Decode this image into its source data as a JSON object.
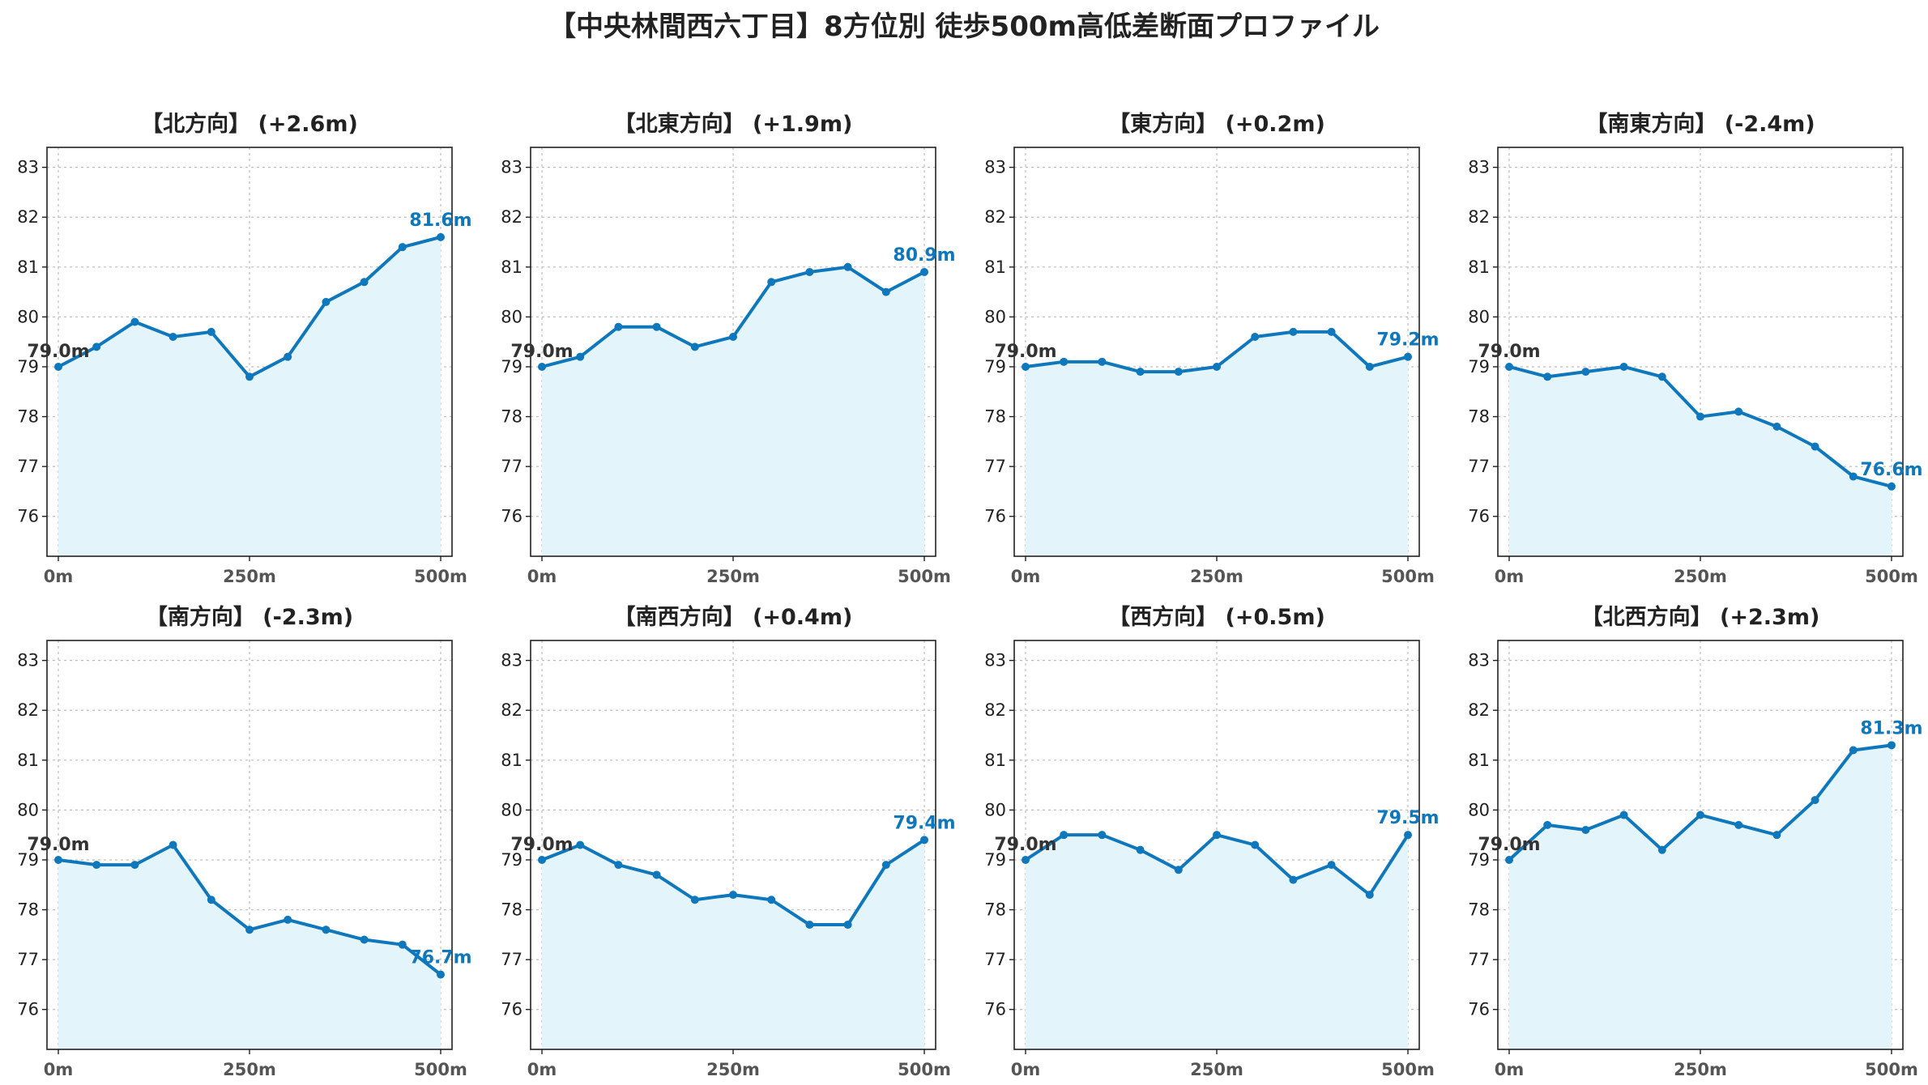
{
  "title": "【中央林間西六丁目】8方位別 徒歩500m高低差断面プロファイル",
  "colors": {
    "line": "#0f77bb",
    "fill": "#e4f4fb",
    "grid": "#bfbfbf",
    "axis": "#222222"
  },
  "chart_data": [
    {
      "type": "area",
      "title": "【北方向】 (+2.6m)",
      "x": [
        0,
        50,
        100,
        150,
        200,
        250,
        300,
        350,
        400,
        450,
        500
      ],
      "values": [
        79.0,
        79.4,
        79.9,
        79.6,
        79.7,
        78.8,
        79.2,
        80.3,
        80.7,
        81.4,
        81.6
      ],
      "start_label": "79.0m",
      "end_label": "81.6m",
      "ylim": [
        75.2,
        83.4
      ],
      "yticks": [
        76,
        77,
        78,
        79,
        80,
        81,
        82,
        83
      ],
      "xticks": [
        "0m",
        "250m",
        "500m"
      ],
      "grid": true
    },
    {
      "type": "area",
      "title": "【北東方向】 (+1.9m)",
      "x": [
        0,
        50,
        100,
        150,
        200,
        250,
        300,
        350,
        400,
        450,
        500
      ],
      "values": [
        79.0,
        79.2,
        79.8,
        79.8,
        79.4,
        79.6,
        80.7,
        80.9,
        81.0,
        80.5,
        80.9
      ],
      "start_label": "79.0m",
      "end_label": "80.9m",
      "ylim": [
        75.2,
        83.4
      ],
      "yticks": [
        76,
        77,
        78,
        79,
        80,
        81,
        82,
        83
      ],
      "xticks": [
        "0m",
        "250m",
        "500m"
      ],
      "grid": true
    },
    {
      "type": "area",
      "title": "【東方向】 (+0.2m)",
      "x": [
        0,
        50,
        100,
        150,
        200,
        250,
        300,
        350,
        400,
        450,
        500
      ],
      "values": [
        79.0,
        79.1,
        79.1,
        78.9,
        78.9,
        79.0,
        79.6,
        79.7,
        79.7,
        79.0,
        79.2
      ],
      "start_label": "79.0m",
      "end_label": "79.2m",
      "ylim": [
        75.2,
        83.4
      ],
      "yticks": [
        76,
        77,
        78,
        79,
        80,
        81,
        82,
        83
      ],
      "xticks": [
        "0m",
        "250m",
        "500m"
      ],
      "grid": true
    },
    {
      "type": "area",
      "title": "【南東方向】 (-2.4m)",
      "x": [
        0,
        50,
        100,
        150,
        200,
        250,
        300,
        350,
        400,
        450,
        500
      ],
      "values": [
        79.0,
        78.8,
        78.9,
        79.0,
        78.8,
        78.0,
        78.1,
        77.8,
        77.4,
        76.8,
        76.6
      ],
      "start_label": "79.0m",
      "end_label": "76.6m",
      "ylim": [
        75.2,
        83.4
      ],
      "yticks": [
        76,
        77,
        78,
        79,
        80,
        81,
        82,
        83
      ],
      "xticks": [
        "0m",
        "250m",
        "500m"
      ],
      "grid": true
    },
    {
      "type": "area",
      "title": "【南方向】 (-2.3m)",
      "x": [
        0,
        50,
        100,
        150,
        200,
        250,
        300,
        350,
        400,
        450,
        500
      ],
      "values": [
        79.0,
        78.9,
        78.9,
        79.3,
        78.2,
        77.6,
        77.8,
        77.6,
        77.4,
        77.3,
        76.7
      ],
      "start_label": "79.0m",
      "end_label": "76.7m",
      "ylim": [
        75.2,
        83.4
      ],
      "yticks": [
        76,
        77,
        78,
        79,
        80,
        81,
        82,
        83
      ],
      "xticks": [
        "0m",
        "250m",
        "500m"
      ],
      "grid": true
    },
    {
      "type": "area",
      "title": "【南西方向】 (+0.4m)",
      "x": [
        0,
        50,
        100,
        150,
        200,
        250,
        300,
        350,
        400,
        450,
        500
      ],
      "values": [
        79.0,
        79.3,
        78.9,
        78.7,
        78.2,
        78.3,
        78.2,
        77.7,
        77.7,
        78.9,
        79.4
      ],
      "start_label": "79.0m",
      "end_label": "79.4m",
      "ylim": [
        75.2,
        83.4
      ],
      "yticks": [
        76,
        77,
        78,
        79,
        80,
        81,
        82,
        83
      ],
      "xticks": [
        "0m",
        "250m",
        "500m"
      ],
      "grid": true
    },
    {
      "type": "area",
      "title": "【西方向】 (+0.5m)",
      "x": [
        0,
        50,
        100,
        150,
        200,
        250,
        300,
        350,
        400,
        450,
        500
      ],
      "values": [
        79.0,
        79.5,
        79.5,
        79.2,
        78.8,
        79.5,
        79.3,
        78.6,
        78.9,
        78.3,
        79.5
      ],
      "start_label": "79.0m",
      "end_label": "79.5m",
      "ylim": [
        75.2,
        83.4
      ],
      "yticks": [
        76,
        77,
        78,
        79,
        80,
        81,
        82,
        83
      ],
      "xticks": [
        "0m",
        "250m",
        "500m"
      ],
      "grid": true
    },
    {
      "type": "area",
      "title": "【北西方向】 (+2.3m)",
      "x": [
        0,
        50,
        100,
        150,
        200,
        250,
        300,
        350,
        400,
        450,
        500
      ],
      "values": [
        79.0,
        79.7,
        79.6,
        79.9,
        79.2,
        79.9,
        79.7,
        79.5,
        80.2,
        81.2,
        81.3
      ],
      "start_label": "79.0m",
      "end_label": "81.3m",
      "ylim": [
        75.2,
        83.4
      ],
      "yticks": [
        76,
        77,
        78,
        79,
        80,
        81,
        82,
        83
      ],
      "xticks": [
        "0m",
        "250m",
        "500m"
      ],
      "grid": true
    }
  ]
}
